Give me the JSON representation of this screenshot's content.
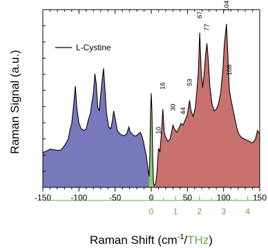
{
  "chart_data": {
    "type": "area",
    "title": "",
    "xlabel": {
      "prefix": "Raman Shift (cm",
      "sup": "-1",
      "slash": "/",
      "thz": "THz",
      "suffix": ")"
    },
    "ylabel": "Raman Signal (a.u.)",
    "legend": {
      "label": "L-Cystine",
      "position": "top-left"
    },
    "xlim": [
      -150,
      150
    ],
    "ylim": [
      0,
      1
    ],
    "x_ticks": [
      -150,
      -100,
      -50,
      0,
      50,
      100,
      150
    ],
    "x_tick_labels": [
      "-150",
      "-100",
      "-50",
      "0",
      "50",
      "100",
      "150"
    ],
    "thz_ticks": [
      0,
      1,
      2,
      3,
      4
    ],
    "thz_tick_labels": [
      "0",
      "1",
      "2",
      "3",
      "4"
    ],
    "cm_per_thz": 33.356,
    "colors": {
      "anti_stokes_fill": "#7878bd",
      "center_fill": "#8ccb6e",
      "stokes_fill": "#c8716f",
      "line": "#000000",
      "thz_axis": "#6aa84f"
    },
    "peak_labels": [
      {
        "x": 10,
        "y": 0.3,
        "text": "10"
      },
      {
        "x": 16,
        "y": 0.55,
        "text": "16"
      },
      {
        "x": 30,
        "y": 0.43,
        "text": "30"
      },
      {
        "x": 44,
        "y": 0.41,
        "text": "44"
      },
      {
        "x": 53,
        "y": 0.57,
        "text": "53"
      },
      {
        "x": 67,
        "y": 0.95,
        "text": "67"
      },
      {
        "x": 77,
        "y": 0.88,
        "text": "77"
      },
      {
        "x": 104,
        "y": 0.99,
        "text": "104"
      },
      {
        "x": 108,
        "y": 0.63,
        "text": "108"
      }
    ],
    "series": [
      {
        "name": "L-Cystine",
        "points": [
          [
            -150,
            0.195
          ],
          [
            -145,
            0.205
          ],
          [
            -140,
            0.215
          ],
          [
            -135,
            0.212
          ],
          [
            -130,
            0.208
          ],
          [
            -125,
            0.21
          ],
          [
            -120,
            0.235
          ],
          [
            -115,
            0.27
          ],
          [
            -112,
            0.33
          ],
          [
            -110,
            0.36
          ],
          [
            -107,
            0.48
          ],
          [
            -105,
            0.57
          ],
          [
            -103,
            0.45
          ],
          [
            -100,
            0.36
          ],
          [
            -97,
            0.33
          ],
          [
            -93,
            0.32
          ],
          [
            -90,
            0.33
          ],
          [
            -87,
            0.38
          ],
          [
            -84,
            0.42
          ],
          [
            -82,
            0.48
          ],
          [
            -80,
            0.53
          ],
          [
            -78,
            0.64
          ],
          [
            -76,
            0.58
          ],
          [
            -74,
            0.45
          ],
          [
            -72,
            0.43
          ],
          [
            -70,
            0.52
          ],
          [
            -68,
            0.6
          ],
          [
            -66,
            0.67
          ],
          [
            -64,
            0.55
          ],
          [
            -62,
            0.42
          ],
          [
            -59,
            0.34
          ],
          [
            -56,
            0.33
          ],
          [
            -54,
            0.37
          ],
          [
            -52,
            0.43
          ],
          [
            -50,
            0.39
          ],
          [
            -47,
            0.32
          ],
          [
            -43,
            0.3
          ],
          [
            -38,
            0.29
          ],
          [
            -34,
            0.3
          ],
          [
            -31,
            0.34
          ],
          [
            -29,
            0.31
          ],
          [
            -26,
            0.3
          ],
          [
            -24,
            0.29
          ],
          [
            -21,
            0.29
          ],
          [
            -18,
            0.3
          ],
          [
            -15,
            0.31
          ],
          [
            -13,
            0.29
          ],
          [
            -11,
            0.26
          ],
          [
            -9,
            0.22
          ],
          [
            -7,
            0.18
          ],
          [
            -5,
            0.12
          ],
          [
            -3,
            0.06
          ],
          [
            -2,
            0.17
          ],
          [
            -1,
            0.42
          ],
          [
            0,
            0.53
          ],
          [
            1,
            0.42
          ],
          [
            2,
            0.17
          ],
          [
            3,
            0.03
          ],
          [
            4,
            0.01
          ],
          [
            6,
            0.02
          ],
          [
            8,
            0.09
          ],
          [
            10,
            0.22
          ],
          [
            12,
            0.2
          ],
          [
            14,
            0.3
          ],
          [
            16,
            0.44
          ],
          [
            18,
            0.31
          ],
          [
            20,
            0.28
          ],
          [
            23,
            0.26
          ],
          [
            26,
            0.27
          ],
          [
            28,
            0.31
          ],
          [
            30,
            0.35
          ],
          [
            32,
            0.33
          ],
          [
            35,
            0.31
          ],
          [
            38,
            0.33
          ],
          [
            41,
            0.36
          ],
          [
            44,
            0.35
          ],
          [
            47,
            0.38
          ],
          [
            50,
            0.41
          ],
          [
            53,
            0.49
          ],
          [
            55,
            0.43
          ],
          [
            58,
            0.4
          ],
          [
            61,
            0.45
          ],
          [
            63,
            0.54
          ],
          [
            65,
            0.64
          ],
          [
            67,
            0.87
          ],
          [
            69,
            0.66
          ],
          [
            71,
            0.56
          ],
          [
            73,
            0.63
          ],
          [
            75,
            0.74
          ],
          [
            77,
            0.81
          ],
          [
            79,
            0.71
          ],
          [
            81,
            0.57
          ],
          [
            84,
            0.47
          ],
          [
            87,
            0.43
          ],
          [
            90,
            0.44
          ],
          [
            93,
            0.47
          ],
          [
            96,
            0.53
          ],
          [
            99,
            0.66
          ],
          [
            101,
            0.8
          ],
          [
            104,
            0.92
          ],
          [
            106,
            0.74
          ],
          [
            108,
            0.55
          ],
          [
            110,
            0.5
          ],
          [
            112,
            0.46
          ],
          [
            115,
            0.4
          ],
          [
            118,
            0.34
          ],
          [
            121,
            0.3
          ],
          [
            125,
            0.28
          ],
          [
            130,
            0.27
          ],
          [
            135,
            0.26
          ],
          [
            140,
            0.25
          ],
          [
            144,
            0.27
          ],
          [
            147,
            0.32
          ],
          [
            150,
            0.3
          ]
        ]
      }
    ]
  }
}
